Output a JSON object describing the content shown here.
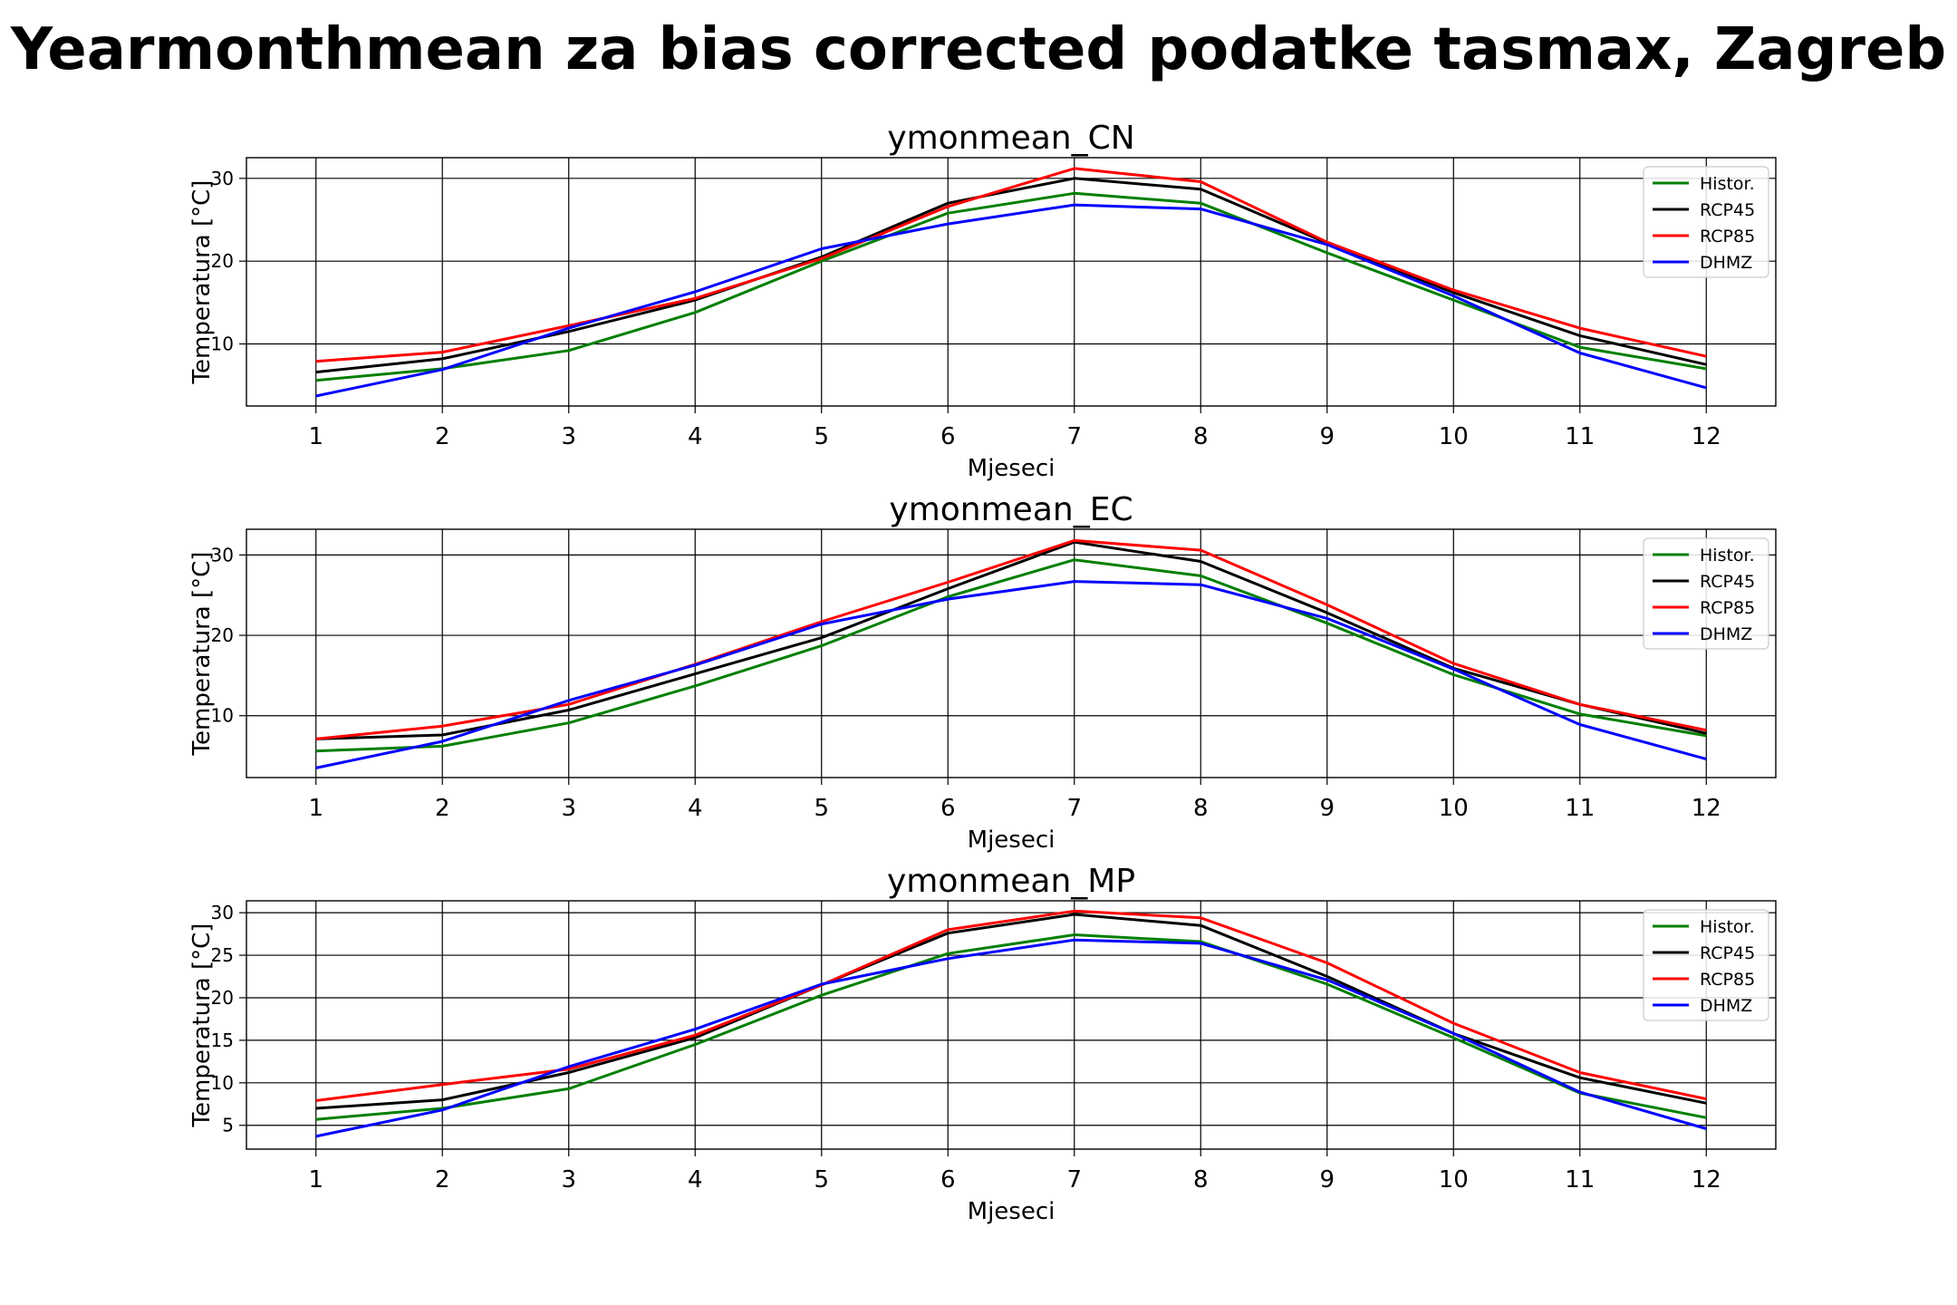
{
  "figure": {
    "title": "Yearmonthmean za bias corrected podatke tasmax, Zagreb"
  },
  "colors": {
    "Histor.": "#007f00",
    "RCP45": "#000000",
    "RCP85": "#ff0000",
    "DHMZ": "#0000ff"
  },
  "chart_data": [
    {
      "type": "line",
      "title": "ymonmean_CN",
      "xlabel": "Mjeseci",
      "ylabel": "Temperatura [°C]",
      "x": [
        1,
        2,
        3,
        4,
        5,
        6,
        7,
        8,
        9,
        10,
        11,
        12
      ],
      "xlim": [
        0.45,
        12.55
      ],
      "ylim": [
        2.5,
        32.5
      ],
      "yticks": [
        10,
        20,
        30
      ],
      "grid": true,
      "legend": "top-right",
      "series": [
        {
          "name": "Histor.",
          "values": [
            5.6,
            7.0,
            9.2,
            13.8,
            20.0,
            25.8,
            28.2,
            27.0,
            21.0,
            15.3,
            9.6,
            7.0
          ]
        },
        {
          "name": "RCP45",
          "values": [
            6.6,
            8.2,
            11.5,
            15.3,
            20.5,
            27.0,
            30.0,
            28.7,
            22.2,
            16.2,
            11.0,
            7.5
          ]
        },
        {
          "name": "RCP85",
          "values": [
            7.9,
            9.0,
            12.2,
            15.5,
            20.3,
            26.6,
            31.2,
            29.6,
            22.3,
            16.5,
            11.9,
            8.5
          ]
        },
        {
          "name": "DHMZ",
          "values": [
            3.7,
            6.9,
            11.9,
            16.3,
            21.5,
            24.5,
            26.8,
            26.3,
            22.0,
            15.8,
            8.9,
            4.7
          ]
        }
      ]
    },
    {
      "type": "line",
      "title": "ymonmean_EC",
      "xlabel": "Mjeseci",
      "ylabel": "Temperatura [°C]",
      "x": [
        1,
        2,
        3,
        4,
        5,
        6,
        7,
        8,
        9,
        10,
        11,
        12
      ],
      "xlim": [
        0.45,
        12.55
      ],
      "ylim": [
        2.3,
        33.2
      ],
      "yticks": [
        10,
        20,
        30
      ],
      "grid": true,
      "legend": "top-right",
      "series": [
        {
          "name": "Histor.",
          "values": [
            5.6,
            6.2,
            9.1,
            13.7,
            18.7,
            24.8,
            29.4,
            27.4,
            21.5,
            15.1,
            10.2,
            7.5
          ]
        },
        {
          "name": "RCP45",
          "values": [
            7.1,
            7.6,
            10.7,
            15.2,
            19.7,
            25.8,
            31.6,
            29.2,
            22.8,
            15.9,
            11.4,
            7.8
          ]
        },
        {
          "name": "RCP85",
          "values": [
            7.1,
            8.7,
            11.4,
            16.4,
            21.7,
            26.6,
            31.8,
            30.6,
            23.8,
            16.5,
            11.4,
            8.2
          ]
        },
        {
          "name": "DHMZ",
          "values": [
            3.5,
            6.8,
            11.9,
            16.3,
            21.4,
            24.5,
            26.7,
            26.3,
            22.1,
            15.8,
            8.9,
            4.6
          ]
        }
      ]
    },
    {
      "type": "line",
      "title": "ymonmean_MP",
      "xlabel": "Mjeseci",
      "ylabel": "Temperatura [°C]",
      "x": [
        1,
        2,
        3,
        4,
        5,
        6,
        7,
        8,
        9,
        10,
        11,
        12
      ],
      "xlim": [
        0.45,
        12.55
      ],
      "ylim": [
        2.2,
        31.4
      ],
      "yticks": [
        5,
        10,
        15,
        20,
        25,
        30
      ],
      "grid": true,
      "legend": "top-right",
      "series": [
        {
          "name": "Histor.",
          "values": [
            5.7,
            7.0,
            9.3,
            14.5,
            20.3,
            25.2,
            27.4,
            26.6,
            21.6,
            15.3,
            8.8,
            5.9
          ]
        },
        {
          "name": "RCP45",
          "values": [
            7.0,
            8.0,
            11.2,
            15.3,
            21.5,
            27.6,
            29.8,
            28.5,
            22.5,
            15.8,
            10.6,
            7.6
          ]
        },
        {
          "name": "RCP85",
          "values": [
            7.9,
            9.8,
            11.6,
            15.6,
            21.5,
            28.0,
            30.2,
            29.4,
            24.1,
            17.0,
            11.2,
            8.1
          ]
        },
        {
          "name": "DHMZ",
          "values": [
            3.7,
            6.8,
            11.9,
            16.3,
            21.6,
            24.6,
            26.8,
            26.4,
            22.1,
            15.8,
            8.9,
            4.6
          ]
        }
      ]
    }
  ]
}
